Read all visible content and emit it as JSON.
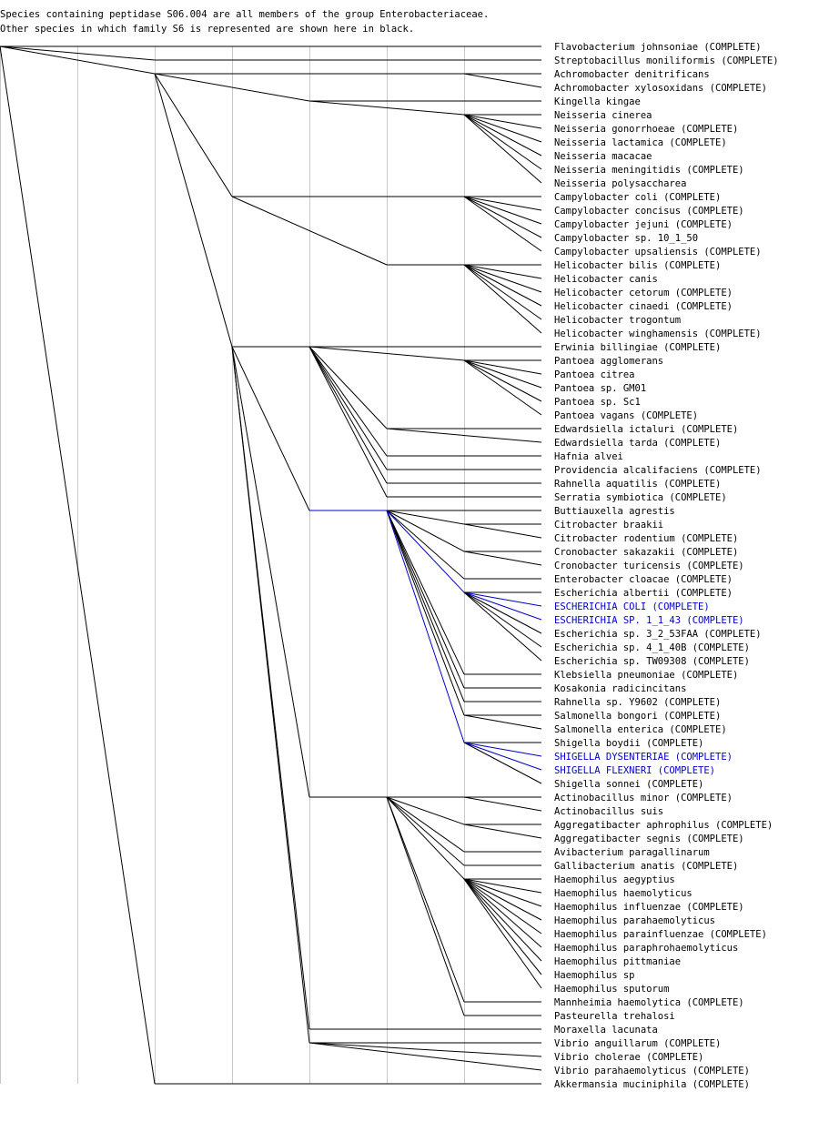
{
  "header": {
    "line1": "Species containing peptidase S06.004 are all members of the group Enterobacteriaceae.",
    "line2": "Other species in which family S6 is represented are shown here in black."
  },
  "colors": {
    "highlight": "#0000cc",
    "normal": "#000000",
    "guide": "#c8c8c8"
  },
  "species": [
    {
      "name": "Flavobacterium johnsoniae (COMPLETE)",
      "hl": false
    },
    {
      "name": "Streptobacillus moniliformis (COMPLETE)",
      "hl": false
    },
    {
      "name": "Achromobacter denitrificans",
      "hl": false
    },
    {
      "name": "Achromobacter xylosoxidans (COMPLETE)",
      "hl": false
    },
    {
      "name": "Kingella kingae",
      "hl": false
    },
    {
      "name": "Neisseria cinerea",
      "hl": false
    },
    {
      "name": "Neisseria gonorrhoeae (COMPLETE)",
      "hl": false
    },
    {
      "name": "Neisseria lactamica (COMPLETE)",
      "hl": false
    },
    {
      "name": "Neisseria macacae",
      "hl": false
    },
    {
      "name": "Neisseria meningitidis (COMPLETE)",
      "hl": false
    },
    {
      "name": "Neisseria polysaccharea",
      "hl": false
    },
    {
      "name": "Campylobacter coli (COMPLETE)",
      "hl": false
    },
    {
      "name": "Campylobacter concisus (COMPLETE)",
      "hl": false
    },
    {
      "name": "Campylobacter jejuni (COMPLETE)",
      "hl": false
    },
    {
      "name": "Campylobacter sp. 10_1_50",
      "hl": false
    },
    {
      "name": "Campylobacter upsaliensis (COMPLETE)",
      "hl": false
    },
    {
      "name": "Helicobacter bilis (COMPLETE)",
      "hl": false
    },
    {
      "name": "Helicobacter canis",
      "hl": false
    },
    {
      "name": "Helicobacter cetorum (COMPLETE)",
      "hl": false
    },
    {
      "name": "Helicobacter cinaedi (COMPLETE)",
      "hl": false
    },
    {
      "name": "Helicobacter trogontum",
      "hl": false
    },
    {
      "name": "Helicobacter winghamensis (COMPLETE)",
      "hl": false
    },
    {
      "name": "Erwinia billingiae (COMPLETE)",
      "hl": false
    },
    {
      "name": "Pantoea agglomerans",
      "hl": false
    },
    {
      "name": "Pantoea citrea",
      "hl": false
    },
    {
      "name": "Pantoea sp. GM01",
      "hl": false
    },
    {
      "name": "Pantoea sp. Sc1",
      "hl": false
    },
    {
      "name": "Pantoea vagans (COMPLETE)",
      "hl": false
    },
    {
      "name": "Edwardsiella ictaluri (COMPLETE)",
      "hl": false
    },
    {
      "name": "Edwardsiella tarda (COMPLETE)",
      "hl": false
    },
    {
      "name": "Hafnia alvei",
      "hl": false
    },
    {
      "name": "Providencia alcalifaciens (COMPLETE)",
      "hl": false
    },
    {
      "name": "Rahnella aquatilis (COMPLETE)",
      "hl": false
    },
    {
      "name": "Serratia symbiotica (COMPLETE)",
      "hl": false
    },
    {
      "name": "Buttiauxella agrestis",
      "hl": false
    },
    {
      "name": "Citrobacter braakii",
      "hl": false
    },
    {
      "name": "Citrobacter rodentium (COMPLETE)",
      "hl": false
    },
    {
      "name": "Cronobacter sakazakii (COMPLETE)",
      "hl": false
    },
    {
      "name": "Cronobacter turicensis (COMPLETE)",
      "hl": false
    },
    {
      "name": "Enterobacter cloacae (COMPLETE)",
      "hl": false
    },
    {
      "name": "Escherichia albertii (COMPLETE)",
      "hl": false
    },
    {
      "name": "ESCHERICHIA COLI (COMPLETE)",
      "hl": true
    },
    {
      "name": "ESCHERICHIA SP. 1_1_43 (COMPLETE)",
      "hl": true
    },
    {
      "name": "Escherichia sp. 3_2_53FAA (COMPLETE)",
      "hl": false
    },
    {
      "name": "Escherichia sp. 4_1_40B (COMPLETE)",
      "hl": false
    },
    {
      "name": "Escherichia sp. TW09308 (COMPLETE)",
      "hl": false
    },
    {
      "name": "Klebsiella pneumoniae (COMPLETE)",
      "hl": false
    },
    {
      "name": "Kosakonia radicincitans",
      "hl": false
    },
    {
      "name": "Rahnella sp. Y9602 (COMPLETE)",
      "hl": false
    },
    {
      "name": "Salmonella bongori (COMPLETE)",
      "hl": false
    },
    {
      "name": "Salmonella enterica (COMPLETE)",
      "hl": false
    },
    {
      "name": "Shigella boydii (COMPLETE)",
      "hl": false
    },
    {
      "name": "SHIGELLA DYSENTERIAE (COMPLETE)",
      "hl": true
    },
    {
      "name": "SHIGELLA FLEXNERI (COMPLETE)",
      "hl": true
    },
    {
      "name": "Shigella sonnei (COMPLETE)",
      "hl": false
    },
    {
      "name": "Actinobacillus minor (COMPLETE)",
      "hl": false
    },
    {
      "name": "Actinobacillus suis",
      "hl": false
    },
    {
      "name": "Aggregatibacter aphrophilus (COMPLETE)",
      "hl": false
    },
    {
      "name": "Aggregatibacter segnis (COMPLETE)",
      "hl": false
    },
    {
      "name": "Avibacterium paragallinarum",
      "hl": false
    },
    {
      "name": "Gallibacterium anatis (COMPLETE)",
      "hl": false
    },
    {
      "name": "Haemophilus aegyptius",
      "hl": false
    },
    {
      "name": "Haemophilus haemolyticus",
      "hl": false
    },
    {
      "name": "Haemophilus influenzae (COMPLETE)",
      "hl": false
    },
    {
      "name": "Haemophilus parahaemolyticus",
      "hl": false
    },
    {
      "name": "Haemophilus parainfluenzae (COMPLETE)",
      "hl": false
    },
    {
      "name": "Haemophilus paraphrohaemolyticus",
      "hl": false
    },
    {
      "name": "Haemophilus pittmaniae",
      "hl": false
    },
    {
      "name": "Haemophilus sp",
      "hl": false
    },
    {
      "name": "Haemophilus sputorum",
      "hl": false
    },
    {
      "name": "Mannheimia haemolytica (COMPLETE)",
      "hl": false
    },
    {
      "name": "Pasteurella trehalosi",
      "hl": false
    },
    {
      "name": "Moraxella lacunata",
      "hl": false
    },
    {
      "name": "Vibrio anguillarum (COMPLETE)",
      "hl": false
    },
    {
      "name": "Vibrio cholerae (COMPLETE)",
      "hl": false
    },
    {
      "name": "Vibrio parahaemolyticus (COMPLETE)",
      "hl": false
    },
    {
      "name": "Akkermansia muciniphila (COMPLETE)",
      "hl": false
    }
  ],
  "tree": [
    {
      "d": 0,
      "row": 0,
      "hl": false,
      "kids": [
        {
          "leaf": 0
        },
        {
          "leaf": 1,
          "d": 2
        },
        {
          "d": 2,
          "row": 2,
          "kids": [
            {
              "d": 6,
              "row": 2,
              "kids": [
                {
                  "leaf": 2
                },
                {
                  "leaf": 3
                }
              ]
            },
            {
              "d": 4,
              "row": 4,
              "kids": [
                {
                  "leaf": 4
                },
                {
                  "d": 6,
                  "row": 5,
                  "kids": [
                    {
                      "leaf": 5
                    },
                    {
                      "leaf": 6
                    },
                    {
                      "leaf": 7
                    },
                    {
                      "leaf": 8
                    },
                    {
                      "leaf": 9
                    },
                    {
                      "leaf": 10
                    }
                  ]
                }
              ]
            },
            {
              "d": 3,
              "row": 11,
              "kids": [
                {
                  "leaf": 11
                },
                {
                  "d": 6,
                  "row": 11,
                  "kids": [
                    {
                      "leaf": 12
                    },
                    {
                      "leaf": 13
                    },
                    {
                      "leaf": 14
                    },
                    {
                      "leaf": 15
                    }
                  ]
                },
                {
                  "d": 5,
                  "row": 16,
                  "kids": [
                    {
                      "d": 6,
                      "row": 16,
                      "kids": [
                        {
                          "leaf": 16
                        },
                        {
                          "leaf": 17
                        },
                        {
                          "leaf": 18
                        },
                        {
                          "leaf": 19
                        },
                        {
                          "leaf": 20
                        },
                        {
                          "leaf": 21
                        }
                      ]
                    }
                  ]
                }
              ]
            },
            {
              "d": 3,
              "row": 22,
              "kids": [
                {
                  "d": 4,
                  "row": 22,
                  "kids": [
                    {
                      "leaf": 22
                    },
                    {
                      "d": 6,
                      "row": 23,
                      "kids": [
                        {
                          "leaf": 23
                        },
                        {
                          "leaf": 24
                        },
                        {
                          "leaf": 25
                        },
                        {
                          "leaf": 26
                        },
                        {
                          "leaf": 27
                        }
                      ]
                    },
                    {
                      "d": 5,
                      "row": 28,
                      "kids": [
                        {
                          "leaf": 28
                        },
                        {
                          "leaf": 29
                        }
                      ]
                    },
                    {
                      "d": 5,
                      "row": 30,
                      "kids": [
                        {
                          "leaf": 30
                        }
                      ]
                    },
                    {
                      "d": 5,
                      "row": 31,
                      "kids": [
                        {
                          "leaf": 31
                        }
                      ]
                    },
                    {
                      "d": 5,
                      "row": 32,
                      "kids": [
                        {
                          "leaf": 32
                        }
                      ]
                    },
                    {
                      "d": 5,
                      "row": 33,
                      "kids": [
                        {
                          "leaf": 33
                        }
                      ]
                    }
                  ]
                },
                {
                  "d": 4,
                  "row": 34,
                  "kids": [
                    {
                      "d": 5,
                      "row": 34,
                      "hl": true,
                      "kids": [
                        {
                          "leaf": 34
                        },
                        {
                          "d": 6,
                          "row": 35,
                          "kids": [
                            {
                              "leaf": 35
                            },
                            {
                              "leaf": 36
                            }
                          ]
                        },
                        {
                          "d": 6,
                          "row": 37,
                          "kids": [
                            {
                              "leaf": 37
                            },
                            {
                              "leaf": 38
                            }
                          ]
                        },
                        {
                          "d": 6,
                          "row": 39,
                          "kids": [
                            {
                              "leaf": 39
                            }
                          ]
                        },
                        {
                          "d": 6,
                          "row": 40,
                          "hl": true,
                          "kids": [
                            {
                              "leaf": 40
                            },
                            {
                              "leaf": 41
                            },
                            {
                              "leaf": 42
                            },
                            {
                              "leaf": 43
                            },
                            {
                              "leaf": 44
                            },
                            {
                              "leaf": 45
                            }
                          ]
                        },
                        {
                          "d": 6,
                          "row": 46,
                          "kids": [
                            {
                              "leaf": 46
                            }
                          ]
                        },
                        {
                          "d": 6,
                          "row": 47,
                          "kids": [
                            {
                              "leaf": 47
                            }
                          ]
                        },
                        {
                          "d": 6,
                          "row": 48,
                          "kids": [
                            {
                              "leaf": 48
                            }
                          ]
                        },
                        {
                          "d": 6,
                          "row": 49,
                          "kids": [
                            {
                              "leaf": 49
                            },
                            {
                              "leaf": 50
                            }
                          ]
                        },
                        {
                          "d": 6,
                          "row": 51,
                          "hl": true,
                          "kids": [
                            {
                              "leaf": 51
                            },
                            {
                              "leaf": 52
                            },
                            {
                              "leaf": 53
                            },
                            {
                              "leaf": 54
                            }
                          ]
                        }
                      ]
                    }
                  ]
                },
                {
                  "d": 4,
                  "row": 55,
                  "kids": [
                    {
                      "d": 5,
                      "row": 55,
                      "kids": [
                        {
                          "d": 6,
                          "row": 55,
                          "kids": [
                            {
                              "leaf": 55
                            },
                            {
                              "leaf": 56
                            }
                          ]
                        },
                        {
                          "d": 6,
                          "row": 57,
                          "kids": [
                            {
                              "leaf": 57
                            },
                            {
                              "leaf": 58
                            }
                          ]
                        },
                        {
                          "d": 6,
                          "row": 59,
                          "kids": [
                            {
                              "leaf": 59
                            }
                          ]
                        },
                        {
                          "d": 6,
                          "row": 60,
                          "kids": [
                            {
                              "leaf": 60
                            }
                          ]
                        },
                        {
                          "d": 6,
                          "row": 61,
                          "kids": [
                            {
                              "leaf": 61
                            },
                            {
                              "leaf": 62
                            },
                            {
                              "leaf": 63
                            },
                            {
                              "leaf": 64
                            },
                            {
                              "leaf": 65
                            },
                            {
                              "leaf": 66
                            },
                            {
                              "leaf": 67
                            },
                            {
                              "leaf": 68
                            },
                            {
                              "leaf": 69
                            }
                          ]
                        },
                        {
                          "d": 6,
                          "row": 70,
                          "kids": [
                            {
                              "leaf": 70
                            }
                          ]
                        },
                        {
                          "d": 6,
                          "row": 71,
                          "kids": [
                            {
                              "leaf": 71
                            }
                          ]
                        }
                      ]
                    }
                  ]
                },
                {
                  "d": 4,
                  "row": 72,
                  "kids": [
                    {
                      "leaf": 72
                    }
                  ]
                },
                {
                  "d": 4,
                  "row": 73,
                  "kids": [
                    {
                      "leaf": 73
                    },
                    {
                      "leaf": 74
                    },
                    {
                      "leaf": 75
                    }
                  ]
                }
              ]
            }
          ]
        },
        {
          "leaf": 76,
          "d": 2
        }
      ]
    }
  ]
}
